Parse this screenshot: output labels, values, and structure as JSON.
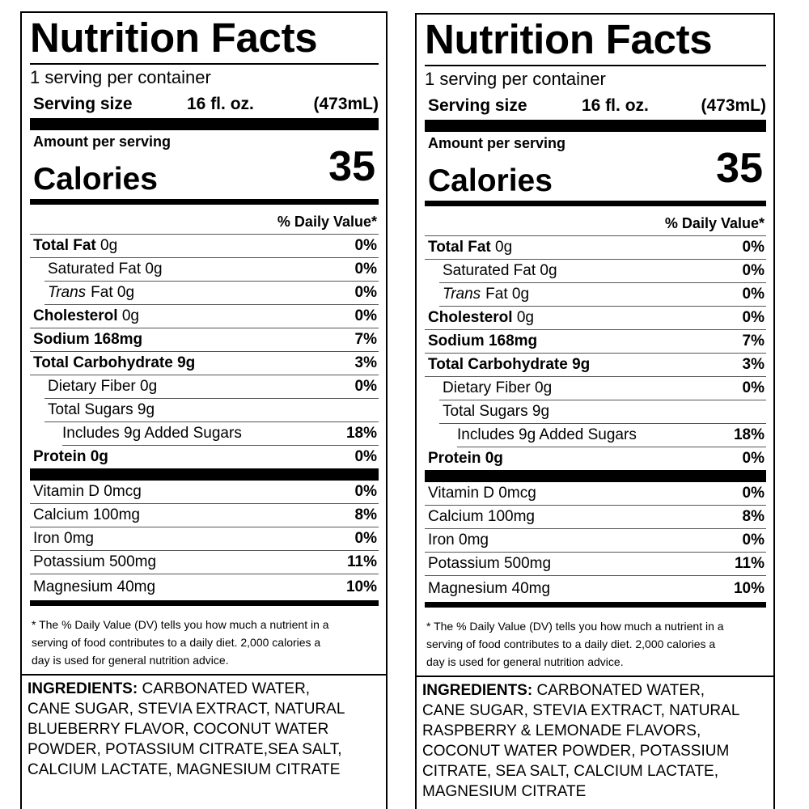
{
  "labels": [
    {
      "title": "Nutrition Facts",
      "servings": "1 serving per container",
      "serving_size_label": "Serving size",
      "serving_size_value": "16 fl. oz.",
      "serving_size_metric": "(473mL)",
      "amount_per_serving": "Amount per serving",
      "calories_label": "Calories",
      "calories": 35,
      "dv_header": "% Daily Value*",
      "nutrients": [
        {
          "name": "Total Fat",
          "amount": "0g",
          "dv": "0%",
          "style": "bold"
        },
        {
          "name": "Saturated Fat",
          "amount": "0g",
          "dv": "0%",
          "style": "indent"
        },
        {
          "italic": "Trans",
          "name": "Fat",
          "amount": "0g",
          "dv": "0%",
          "style": "indent"
        },
        {
          "name": "Cholesterol",
          "amount": "0g",
          "dv": "0%",
          "style": "bold"
        },
        {
          "name": "Sodium",
          "amount": "168mg",
          "dv": "7%",
          "style": "strong"
        },
        {
          "name": "Total Carbohydrate",
          "amount": "9g",
          "dv": "3%",
          "style": "strong"
        },
        {
          "name": "Dietary Fiber",
          "amount": "0g",
          "dv": "0%",
          "style": "indent"
        },
        {
          "name": "Total Sugars",
          "amount": "9g",
          "style": "indent"
        },
        {
          "name": "Includes 9g Added Sugars",
          "dv": "18%",
          "style": "indent2"
        },
        {
          "name": "Protein",
          "amount": "0g",
          "dv": "0%",
          "style": "strong"
        }
      ],
      "vitamins": [
        {
          "name": "Vitamin D",
          "amount": "0mcg",
          "dv": "0%"
        },
        {
          "name": "Calcium",
          "amount": "100mg",
          "dv": "8%"
        },
        {
          "name": "Iron",
          "amount": "0mg",
          "dv": "0%"
        },
        {
          "name": "Potassium",
          "amount": "500mg",
          "dv": "11%"
        },
        {
          "name": "Magnesium",
          "amount": "40mg",
          "dv": "10%"
        }
      ],
      "footnote": [
        "* The % Daily Value (DV) tells you how much a nutrient in a",
        "serving of food contributes to a daily diet. 2,000 calories a",
        "day is used for general nutrition advice."
      ],
      "ingredients_label": "INGREDIENTS:",
      "ingredients": [
        "CARBONATED WATER,",
        "CANE SUGAR, STEVIA EXTRACT, NATURAL",
        "BLUEBERRY FLAVOR, COCONUT WATER",
        "POWDER, POTASSIUM CITRATE,SEA SALT,",
        "CALCIUM LACTATE, MAGNESIUM CITRATE"
      ]
    },
    {
      "title": "Nutrition Facts",
      "servings": "1 serving per container",
      "serving_size_label": "Serving size",
      "serving_size_value": "16 fl. oz.",
      "serving_size_metric": "(473mL)",
      "amount_per_serving": "Amount per serving",
      "calories_label": "Calories",
      "calories": 35,
      "dv_header": "% Daily Value*",
      "nutrients": [
        {
          "name": "Total Fat",
          "amount": "0g",
          "dv": "0%",
          "style": "bold"
        },
        {
          "name": "Saturated Fat",
          "amount": "0g",
          "dv": "0%",
          "style": "indent"
        },
        {
          "italic": "Trans",
          "name": "Fat",
          "amount": "0g",
          "dv": "0%",
          "style": "indent"
        },
        {
          "name": "Cholesterol",
          "amount": "0g",
          "dv": "0%",
          "style": "bold"
        },
        {
          "name": "Sodium",
          "amount": "168mg",
          "dv": "7%",
          "style": "strong"
        },
        {
          "name": "Total Carbohydrate",
          "amount": "9g",
          "dv": "3%",
          "style": "strong"
        },
        {
          "name": "Dietary Fiber",
          "amount": "0g",
          "dv": "0%",
          "style": "indent"
        },
        {
          "name": "Total Sugars",
          "amount": "9g",
          "style": "indent"
        },
        {
          "name": "Includes 9g Added Sugars",
          "dv": "18%",
          "style": "indent2"
        },
        {
          "name": "Protein",
          "amount": "0g",
          "dv": "0%",
          "style": "strong"
        }
      ],
      "vitamins": [
        {
          "name": "Vitamin D",
          "amount": "0mcg",
          "dv": "0%"
        },
        {
          "name": "Calcium",
          "amount": "100mg",
          "dv": "8%"
        },
        {
          "name": "Iron",
          "amount": "0mg",
          "dv": "0%"
        },
        {
          "name": "Potassium",
          "amount": "500mg",
          "dv": "11%"
        },
        {
          "name": "Magnesium",
          "amount": "40mg",
          "dv": "10%"
        }
      ],
      "footnote": [
        "* The % Daily Value (DV) tells you how much a nutrient in a",
        "serving of food contributes to a daily diet. 2,000 calories a",
        "day is used for general nutrition advice."
      ],
      "ingredients_label": "INGREDIENTS:",
      "ingredients": [
        "CARBONATED WATER,",
        "CANE SUGAR, STEVIA EXTRACT, NATURAL",
        "RASPBERRY & LEMONADE FLAVORS,",
        "COCONUT WATER POWDER, POTASSIUM",
        "CITRATE, SEA SALT, CALCIUM LACTATE,",
        "MAGNESIUM CITRATE"
      ]
    }
  ]
}
